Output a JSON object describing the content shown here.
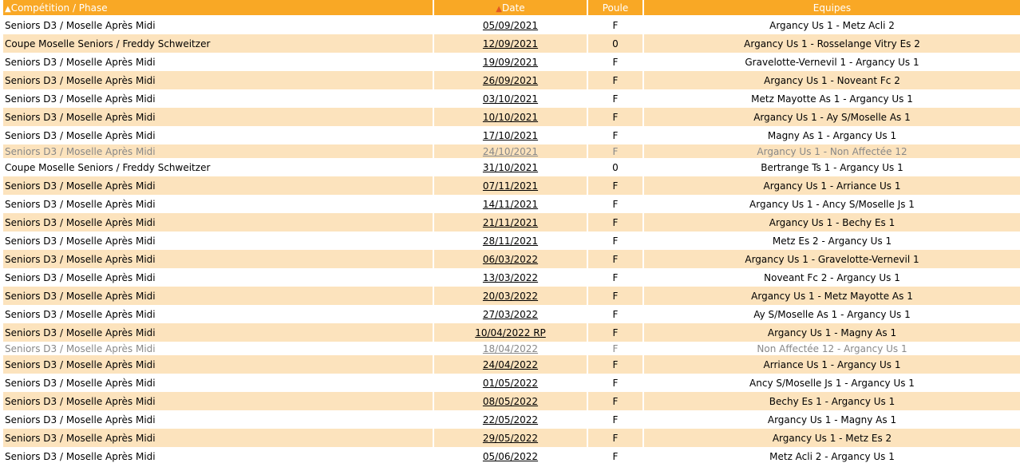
{
  "headers": {
    "competition": "Compétition / Phase",
    "date": "Date",
    "poule": "Poule",
    "equipes": "Equipes"
  },
  "rows": [
    {
      "c": "Seniors D3 / Moselle Après Midi",
      "d": "05/09/2021",
      "p": "F",
      "e": "Argancy Us 1 - Metz Acli 2"
    },
    {
      "c": "Coupe Moselle Seniors / Freddy Schweitzer",
      "d": "12/09/2021",
      "p": "0",
      "e": "Argancy Us 1 - Rosselange Vitry Es 2"
    },
    {
      "c": "Seniors D3 / Moselle Après Midi",
      "d": "19/09/2021",
      "p": "F",
      "e": "Gravelotte-Vernevil 1 - Argancy Us 1"
    },
    {
      "c": "Seniors D3 / Moselle Après Midi",
      "d": "26/09/2021",
      "p": "F",
      "e": "Argancy Us 1 - Noveant Fc 2"
    },
    {
      "c": "Seniors D3 / Moselle Après Midi",
      "d": "03/10/2021",
      "p": "F",
      "e": "Metz Mayotte As 1 - Argancy Us 1"
    },
    {
      "c": "Seniors D3 / Moselle Après Midi",
      "d": "10/10/2021",
      "p": "F",
      "e": "Argancy Us 1 - Ay S/Moselle As 1"
    },
    {
      "c": "Seniors D3 / Moselle Après Midi",
      "d": "17/10/2021",
      "p": "F",
      "e": "Magny As 1 - Argancy Us 1"
    },
    {
      "c": "Seniors D3 / Moselle Après Midi",
      "d": "24/10/2021",
      "p": "F",
      "e": "Argancy Us 1 - Non Affectée 12",
      "disabled": true
    },
    {
      "c": "Coupe Moselle Seniors / Freddy Schweitzer",
      "d": "31/10/2021",
      "p": "0",
      "e": "Bertrange Ts 1 - Argancy Us 1"
    },
    {
      "c": "Seniors D3 / Moselle Après Midi",
      "d": "07/11/2021",
      "p": "F",
      "e": "Argancy Us 1 - Arriance Us 1"
    },
    {
      "c": "Seniors D3 / Moselle Après Midi",
      "d": "14/11/2021",
      "p": "F",
      "e": "Argancy Us 1 - Ancy S/Moselle Js 1"
    },
    {
      "c": "Seniors D3 / Moselle Après Midi",
      "d": "21/11/2021",
      "p": "F",
      "e": "Argancy Us 1 - Bechy Es 1"
    },
    {
      "c": "Seniors D3 / Moselle Après Midi",
      "d": "28/11/2021",
      "p": "F",
      "e": "Metz Es 2 - Argancy Us 1"
    },
    {
      "c": "Seniors D3 / Moselle Après Midi",
      "d": "06/03/2022",
      "p": "F",
      "e": "Argancy Us 1 - Gravelotte-Vernevil 1"
    },
    {
      "c": "Seniors D3 / Moselle Après Midi",
      "d": "13/03/2022",
      "p": "F",
      "e": "Noveant Fc 2 - Argancy Us 1"
    },
    {
      "c": "Seniors D3 / Moselle Après Midi",
      "d": "20/03/2022",
      "p": "F",
      "e": "Argancy Us 1 - Metz Mayotte As 1"
    },
    {
      "c": "Seniors D3 / Moselle Après Midi",
      "d": "27/03/2022",
      "p": "F",
      "e": "Ay S/Moselle As 1 - Argancy Us 1"
    },
    {
      "c": "Seniors D3 / Moselle Après Midi",
      "d": "10/04/2022 RP",
      "p": "F",
      "e": "Argancy Us 1 - Magny As 1"
    },
    {
      "c": "Seniors D3 / Moselle Après Midi",
      "d": "18/04/2022",
      "p": "F",
      "e": "Non Affectée 12 - Argancy Us 1",
      "disabled": true
    },
    {
      "c": "Seniors D3 / Moselle Après Midi",
      "d": "24/04/2022",
      "p": "F",
      "e": "Arriance Us 1 - Argancy Us 1"
    },
    {
      "c": "Seniors D3 / Moselle Après Midi",
      "d": "01/05/2022",
      "p": "F",
      "e": "Ancy S/Moselle Js 1 - Argancy Us 1"
    },
    {
      "c": "Seniors D3 / Moselle Après Midi",
      "d": "08/05/2022",
      "p": "F",
      "e": "Bechy Es 1 - Argancy Us 1"
    },
    {
      "c": "Seniors D3 / Moselle Après Midi",
      "d": "22/05/2022",
      "p": "F",
      "e": "Argancy Us 1 - Magny As 1"
    },
    {
      "c": "Seniors D3 / Moselle Après Midi",
      "d": "29/05/2022",
      "p": "F",
      "e": "Argancy Us 1 - Metz Es 2"
    },
    {
      "c": "Seniors D3 / Moselle Après Midi",
      "d": "05/06/2022",
      "p": "F",
      "e": "Metz Acli 2 - Argancy Us 1"
    }
  ],
  "colors": {
    "header": "#f9a825",
    "alt_row": "#fce3bd",
    "sort_active": "#e25822"
  }
}
